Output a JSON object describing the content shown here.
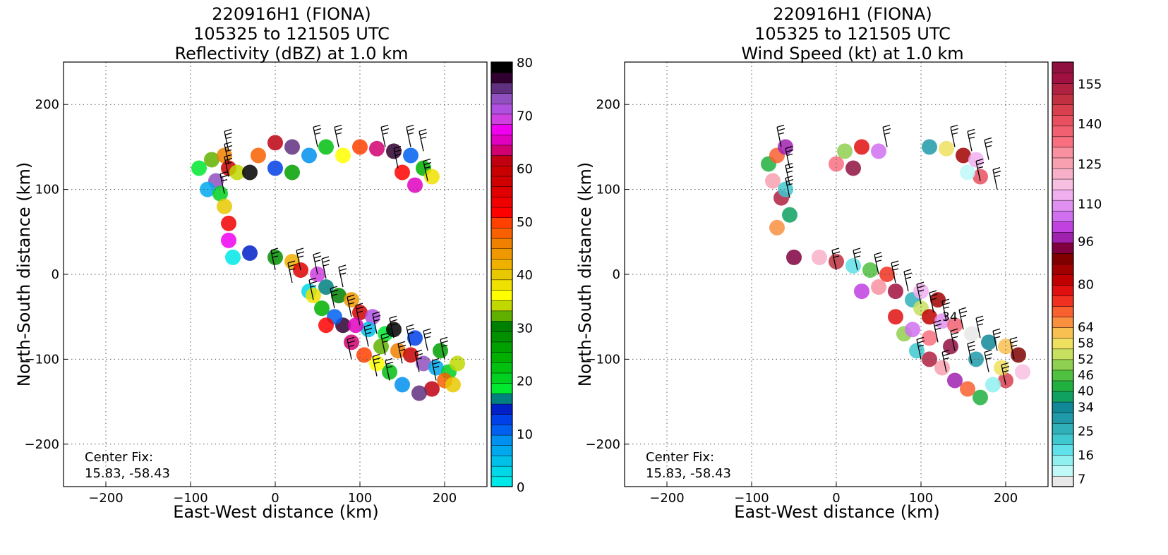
{
  "chart_data": [
    {
      "type": "heatmap",
      "title_lines": [
        "220916H1 (FIONA)",
        "105325 to 121505 UTC",
        "Reflectivity (dBZ) at 1.0 km"
      ],
      "xlabel": "East-West distance (km)",
      "ylabel": "North-South distance (km)",
      "xlim": [
        -250,
        250
      ],
      "ylim": [
        -250,
        250
      ],
      "xticks": [
        -200,
        -100,
        0,
        100,
        200
      ],
      "xtick_labels": [
        "−200",
        "−100",
        "0",
        "100",
        "200"
      ],
      "yticks": [
        200,
        100,
        0,
        -100,
        -200
      ],
      "ytick_labels": [
        "200",
        "100",
        "0",
        "−100",
        "−200"
      ],
      "grid": true,
      "annotation": [
        "Center Fix:",
        "15.83, -58.43"
      ],
      "colorbar": {
        "min": 0,
        "max": 80,
        "ticks": [
          0,
          10,
          20,
          30,
          40,
          50,
          60,
          70,
          80
        ],
        "tick_labels": [
          "0",
          "10",
          "20",
          "30",
          "40",
          "50",
          "60",
          "70",
          "80"
        ],
        "colors": [
          "#00e8e8",
          "#00d8e8",
          "#00c0ea",
          "#00a8ee",
          "#0090f0",
          "#0060f0",
          "#0040e8",
          "#0020c8",
          "#008080",
          "#00e830",
          "#00d020",
          "#00c010",
          "#00b000",
          "#00a000",
          "#009000",
          "#008000",
          "#60b000",
          "#c0d800",
          "#ffff00",
          "#f0e000",
          "#e8c800",
          "#f0b000",
          "#f09800",
          "#f08000",
          "#f86000",
          "#ff4000",
          "#ff0000",
          "#f00000",
          "#e00000",
          "#d00000",
          "#c80000",
          "#c00010",
          "#d00070",
          "#e000c0",
          "#f000f0",
          "#d040e0",
          "#b050e0",
          "#9050c0",
          "#603080",
          "#300030",
          "#000000"
        ]
      },
      "series": [
        {
          "points": [
            [
              -90,
              125
            ],
            [
              -75,
              135
            ],
            [
              -60,
              140
            ],
            [
              -55,
              125
            ],
            [
              -70,
              110
            ],
            [
              -80,
              100
            ],
            [
              -65,
              95
            ],
            [
              -45,
              120
            ],
            [
              -20,
              140
            ],
            [
              0,
              155
            ],
            [
              20,
              150
            ],
            [
              40,
              140
            ],
            [
              60,
              150
            ],
            [
              80,
              140
            ],
            [
              100,
              150
            ],
            [
              120,
              148
            ],
            [
              140,
              145
            ],
            [
              160,
              140
            ],
            [
              175,
              125
            ],
            [
              185,
              115
            ],
            [
              150,
              120
            ],
            [
              165,
              105
            ],
            [
              -30,
              120
            ],
            [
              0,
              125
            ],
            [
              20,
              120
            ],
            [
              -60,
              80
            ],
            [
              -55,
              60
            ],
            [
              -55,
              40
            ],
            [
              -50,
              20
            ],
            [
              -30,
              25
            ],
            [
              0,
              20
            ],
            [
              20,
              15
            ],
            [
              30,
              5
            ],
            [
              50,
              0
            ],
            [
              40,
              -20
            ],
            [
              60,
              -15
            ],
            [
              75,
              -25
            ],
            [
              90,
              -30
            ],
            [
              100,
              -45
            ],
            [
              115,
              -50
            ],
            [
              110,
              -65
            ],
            [
              130,
              -70
            ],
            [
              125,
              -85
            ],
            [
              145,
              -90
            ],
            [
              160,
              -95
            ],
            [
              175,
              -105
            ],
            [
              190,
              -110
            ],
            [
              205,
              -115
            ],
            [
              215,
              -105
            ],
            [
              200,
              -125
            ],
            [
              185,
              -135
            ],
            [
              170,
              -140
            ],
            [
              150,
              -130
            ],
            [
              135,
              -115
            ],
            [
              120,
              -105
            ],
            [
              105,
              -95
            ],
            [
              90,
              -80
            ],
            [
              80,
              -60
            ],
            [
              70,
              -50
            ],
            [
              55,
              -40
            ],
            [
              45,
              -25
            ],
            [
              60,
              -60
            ],
            [
              95,
              -60
            ],
            [
              140,
              -65
            ],
            [
              165,
              -75
            ],
            [
              195,
              -90
            ],
            [
              210,
              -130
            ]
          ]
        }
      ],
      "barbs": [
        [
          -55,
          145
        ],
        [
          -55,
          130
        ],
        [
          -55,
          115
        ],
        [
          -60,
          95
        ],
        [
          50,
          150
        ],
        [
          75,
          150
        ],
        [
          130,
          150
        ],
        [
          160,
          150
        ],
        [
          175,
          145
        ],
        [
          145,
          125
        ],
        [
          180,
          110
        ],
        [
          0,
          5
        ],
        [
          30,
          5
        ],
        [
          50,
          0
        ],
        [
          60,
          -5
        ],
        [
          80,
          -15
        ],
        [
          20,
          -10
        ],
        [
          45,
          -30
        ],
        [
          70,
          -40
        ],
        [
          90,
          -50
        ],
        [
          100,
          -60
        ],
        [
          120,
          -70
        ],
        [
          140,
          -75
        ],
        [
          160,
          -85
        ],
        [
          180,
          -90
        ],
        [
          200,
          -100
        ],
        [
          110,
          -85
        ],
        [
          130,
          -95
        ],
        [
          150,
          -105
        ],
        [
          170,
          -115
        ],
        [
          190,
          -125
        ],
        [
          90,
          -100
        ],
        [
          120,
          -120
        ],
        [
          135,
          -125
        ]
      ]
    },
    {
      "type": "heatmap",
      "title_lines": [
        "220916H1 (FIONA)",
        "105325 to 121505 UTC",
        "Wind Speed (kt) at 1.0 km"
      ],
      "xlabel": "East-West distance (km)",
      "ylabel": "North-South distance (km)",
      "xlim": [
        -250,
        250
      ],
      "ylim": [
        -250,
        250
      ],
      "xticks": [
        -200,
        -100,
        0,
        100,
        200
      ],
      "xtick_labels": [
        "−200",
        "−100",
        "0",
        "100",
        "200"
      ],
      "yticks": [
        200,
        100,
        0,
        -100,
        -200
      ],
      "ytick_labels": [
        "200",
        "100",
        "0",
        "−100",
        "−200"
      ],
      "grid": true,
      "annotation": [
        "Center Fix:",
        "15.83, -58.43"
      ],
      "contour_label": "34",
      "colorbar": {
        "min": 4,
        "max": 163,
        "ticks": [
          7,
          16,
          25,
          34,
          40,
          46,
          52,
          58,
          64,
          80,
          96,
          110,
          125,
          140,
          155
        ],
        "tick_labels": [
          "7",
          "16",
          "25",
          "34",
          "40",
          "46",
          "52",
          "58",
          "64",
          "80",
          "96",
          "110",
          "125",
          "140",
          "155"
        ],
        "colors": [
          "#e8e8e8",
          "#c0f8f8",
          "#90f0f0",
          "#60e0e8",
          "#40c8d0",
          "#30b0b8",
          "#209aa8",
          "#108898",
          "#10a060",
          "#20b040",
          "#50c040",
          "#90d050",
          "#c8e060",
          "#f0e060",
          "#f8c050",
          "#f89040",
          "#f86030",
          "#f03020",
          "#e01010",
          "#c00000",
          "#a00000",
          "#800000",
          "#800040",
          "#a020b0",
          "#c040e0",
          "#d070f0",
          "#e090f0",
          "#f0b0f0",
          "#f8c0e0",
          "#f8b0c8",
          "#f8a0b0",
          "#f890a0",
          "#f87080",
          "#f06070",
          "#e85060",
          "#d84050",
          "#c03040",
          "#b02040",
          "#a01040",
          "#901040"
        ]
      },
      "series": [
        {
          "points": [
            [
              -80,
              130
            ],
            [
              -70,
              140
            ],
            [
              -60,
              150
            ],
            [
              -75,
              110
            ],
            [
              -65,
              90
            ],
            [
              -60,
              100
            ],
            [
              10,
              145
            ],
            [
              30,
              150
            ],
            [
              50,
              145
            ],
            [
              0,
              130
            ],
            [
              20,
              125
            ],
            [
              110,
              150
            ],
            [
              130,
              148
            ],
            [
              150,
              140
            ],
            [
              165,
              135
            ],
            [
              170,
              115
            ],
            [
              155,
              120
            ],
            [
              -55,
              70
            ],
            [
              -70,
              55
            ],
            [
              -50,
              20
            ],
            [
              -20,
              20
            ],
            [
              0,
              15
            ],
            [
              20,
              10
            ],
            [
              40,
              5
            ],
            [
              60,
              0
            ],
            [
              30,
              -20
            ],
            [
              50,
              -15
            ],
            [
              70,
              -20
            ],
            [
              90,
              -30
            ],
            [
              100,
              -40
            ],
            [
              110,
              -50
            ],
            [
              125,
              -55
            ],
            [
              140,
              -60
            ],
            [
              160,
              -70
            ],
            [
              180,
              -80
            ],
            [
              200,
              -85
            ],
            [
              215,
              -95
            ],
            [
              220,
              -115
            ],
            [
              200,
              -125
            ],
            [
              185,
              -130
            ],
            [
              170,
              -145
            ],
            [
              155,
              -135
            ],
            [
              140,
              -125
            ],
            [
              125,
              -110
            ],
            [
              110,
              -100
            ],
            [
              95,
              -90
            ],
            [
              80,
              -70
            ],
            [
              70,
              -50
            ],
            [
              90,
              -65
            ],
            [
              110,
              -75
            ],
            [
              135,
              -85
            ],
            [
              165,
              -100
            ],
            [
              195,
              -110
            ],
            [
              120,
              -30
            ],
            [
              100,
              -20
            ]
          ]
        }
      ],
      "barbs": [
        [
          -65,
          150
        ],
        [
          -55,
          125
        ],
        [
          -55,
          105
        ],
        [
          -55,
          90
        ],
        [
          60,
          150
        ],
        [
          140,
          150
        ],
        [
          160,
          145
        ],
        [
          180,
          135
        ],
        [
          170,
          110
        ],
        [
          190,
          100
        ],
        [
          0,
          5
        ],
        [
          25,
          5
        ],
        [
          50,
          0
        ],
        [
          70,
          -10
        ],
        [
          85,
          -20
        ],
        [
          100,
          -35
        ],
        [
          115,
          -45
        ],
        [
          130,
          -55
        ],
        [
          150,
          -65
        ],
        [
          170,
          -75
        ],
        [
          190,
          -90
        ],
        [
          210,
          -100
        ],
        [
          120,
          -80
        ],
        [
          140,
          -90
        ],
        [
          160,
          -105
        ],
        [
          180,
          -115
        ],
        [
          200,
          -130
        ],
        [
          100,
          -100
        ],
        [
          130,
          -115
        ]
      ]
    }
  ]
}
